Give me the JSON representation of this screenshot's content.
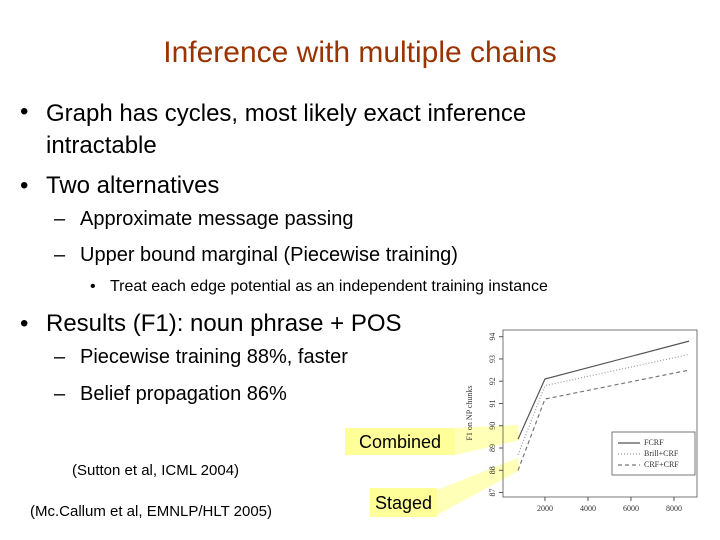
{
  "title": "Inference with multiple chains",
  "bullets": [
    {
      "text": "Graph has cycles, most likely exact inference intractable"
    },
    {
      "text": "Two alternatives",
      "sub": [
        {
          "text": "Approximate message passing"
        },
        {
          "text": "Upper bound marginal (Piecewise training)",
          "sub": [
            "Treat each edge potential as an independent training instance"
          ]
        }
      ]
    },
    {
      "text": "Results (F1): noun phrase + POS",
      "sub": [
        {
          "text": "Piecewise training 88%, faster"
        },
        {
          "text": "Belief propagation 86%"
        }
      ]
    }
  ],
  "callouts": [
    "Combined",
    "Staged"
  ],
  "citations": [
    "(Sutton et al, ICML 2004)",
    "(Mc.Callum et al, EMNLP/HLT 2005)"
  ],
  "figure": {
    "type": "line",
    "y_label": "F1 on NP chunks",
    "x": [
      750,
      2000,
      8700
    ],
    "series": [
      {
        "name": "FCRF",
        "color": "#555555",
        "dash": "none",
        "values": [
          89.4,
          92.1,
          93.8
        ]
      },
      {
        "name": "Brill+CRF",
        "color": "#999999",
        "dash": "1,2",
        "values": [
          88.7,
          91.8,
          93.2
        ]
      },
      {
        "name": "CRF+CRF",
        "color": "#777777",
        "dash": "4,3",
        "values": [
          88.0,
          91.2,
          92.5
        ]
      }
    ],
    "xlim": [
      50,
      9070
    ],
    "ylim": [
      86.8,
      94.3
    ],
    "xticks": [
      2000,
      4000,
      6000,
      8000
    ],
    "yticks": [
      87,
      88,
      89,
      90,
      91,
      92,
      93,
      94
    ]
  }
}
